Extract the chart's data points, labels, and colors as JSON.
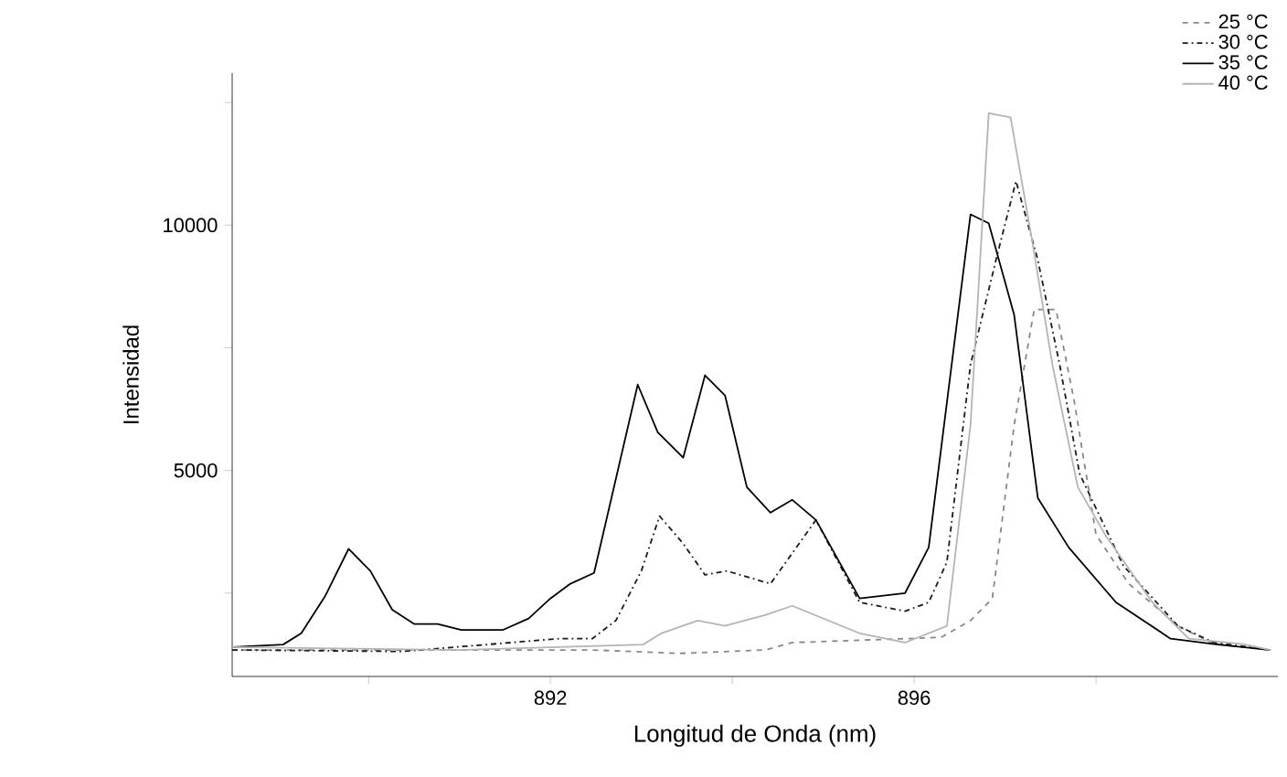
{
  "chart_data": {
    "type": "line",
    "xlabel": "Longitud de Onda (nm)",
    "ylabel": "Intensidad",
    "xlim": [
      888.5,
      900
    ],
    "ylim": [
      800,
      13100
    ],
    "xticks": [
      {
        "value": 890,
        "label": null
      },
      892,
      {
        "value": 894,
        "label": null
      },
      896,
      {
        "value": 898,
        "label": null
      }
    ],
    "yticks": [
      {
        "value": 2500,
        "label": null
      },
      5000,
      {
        "value": 7500,
        "label": null
      },
      10000,
      {
        "value": 12500,
        "label": null
      }
    ],
    "grid": false,
    "legend": "top right",
    "marker": "none",
    "series": [
      {
        "name": "25 °C",
        "color": "#888888",
        "line_style": "dashed",
        "x": [
          888.5,
          890.36,
          892.46,
          893.42,
          894.36,
          894.66,
          895.9,
          896.3,
          896.62,
          896.86,
          897.1,
          897.32,
          897.56,
          897.76,
          898.0,
          898.36,
          898.9,
          899.3,
          899.92
        ],
        "values": [
          1340,
          1340,
          1340,
          1270,
          1340,
          1490,
          1570,
          1600,
          1940,
          2390,
          5930,
          8280,
          8280,
          6420,
          3690,
          2690,
          1830,
          1460,
          1340
        ]
      },
      {
        "name": "30 °C",
        "color": "#1a1a1a",
        "line_style": "dashdotted",
        "x": [
          888.5,
          890.36,
          892.1,
          892.46,
          892.72,
          893.0,
          893.2,
          893.46,
          893.7,
          893.94,
          894.42,
          894.92,
          895.4,
          895.9,
          896.16,
          896.36,
          896.62,
          896.9,
          897.12,
          897.36,
          897.6,
          897.82,
          898.3,
          898.9,
          899.3,
          899.92
        ],
        "values": [
          1340,
          1310,
          1570,
          1570,
          1940,
          2950,
          4070,
          3510,
          2870,
          2950,
          2690,
          3990,
          2310,
          2130,
          2310,
          3130,
          7160,
          9290,
          10900,
          9290,
          7160,
          4930,
          3060,
          1830,
          1490,
          1340
        ]
      },
      {
        "name": "35 °C",
        "color": "#000000",
        "line_style": "solid",
        "x": [
          888.5,
          889.06,
          889.26,
          889.52,
          889.78,
          890.02,
          890.26,
          890.5,
          890.76,
          891.02,
          891.48,
          891.76,
          892.0,
          892.22,
          892.48,
          892.96,
          893.18,
          893.46,
          893.7,
          893.92,
          894.16,
          894.42,
          894.66,
          894.92,
          895.4,
          895.9,
          896.16,
          896.62,
          896.82,
          897.1,
          897.36,
          897.7,
          898.22,
          898.82,
          899.3,
          899.92
        ],
        "values": [
          1400,
          1450,
          1680,
          2430,
          3400,
          2950,
          2160,
          1870,
          1870,
          1750,
          1750,
          1980,
          2390,
          2690,
          2910,
          6750,
          5780,
          5260,
          6940,
          6530,
          4660,
          4140,
          4400,
          3990,
          2390,
          2500,
          3430,
          10220,
          10040,
          8170,
          4440,
          3430,
          2310,
          1570,
          1460,
          1340
        ]
      },
      {
        "name": "40 °C",
        "color": "#b4b4b4",
        "line_style": "solid",
        "x": [
          888.5,
          891.02,
          893.02,
          893.22,
          893.62,
          893.92,
          894.36,
          894.66,
          895.4,
          895.9,
          896.36,
          896.62,
          896.82,
          897.06,
          897.3,
          897.52,
          897.8,
          898.1,
          898.62,
          899.02,
          899.62,
          899.92
        ],
        "values": [
          1400,
          1340,
          1450,
          1680,
          1940,
          1830,
          2050,
          2240,
          1680,
          1490,
          1830,
          5930,
          12280,
          12200,
          9660,
          7160,
          4660,
          3690,
          2310,
          1570,
          1460,
          1340
        ]
      }
    ]
  }
}
